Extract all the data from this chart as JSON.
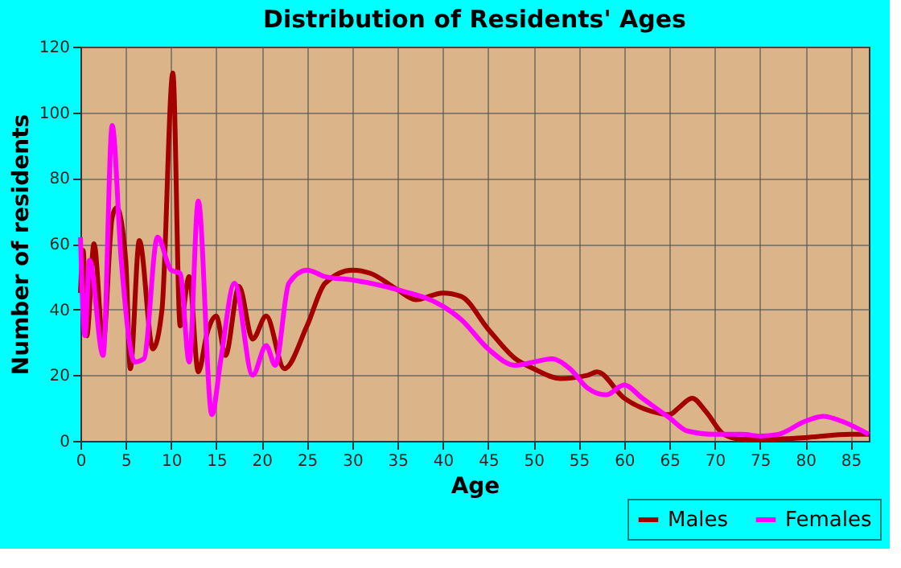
{
  "chart_data": {
    "type": "line",
    "title": "Distribution of Residents' Ages",
    "xlabel": "Age",
    "ylabel": "Number of residents",
    "xlim": [
      0,
      87
    ],
    "ylim": [
      0,
      120
    ],
    "xticks": [
      0,
      5,
      10,
      15,
      20,
      25,
      30,
      35,
      40,
      45,
      50,
      55,
      60,
      65,
      70,
      75,
      80,
      85
    ],
    "yticks": [
      0,
      20,
      40,
      60,
      80,
      100,
      120
    ],
    "grid": true,
    "legend": "bottom right",
    "marker": "none",
    "line_style": "solid",
    "series": [
      {
        "name": "Males",
        "color": "#a50000",
        "x": [
          0,
          0.3,
          0.7,
          1.5,
          2.5,
          3.5,
          4,
          5,
          5.5,
          6.5,
          8,
          9,
          10.2,
          11,
          12,
          13,
          14,
          15,
          16,
          17.5,
          19,
          20.5,
          22.5,
          25,
          27,
          30,
          32,
          35,
          37,
          40,
          42,
          45,
          48,
          50,
          53,
          56,
          57,
          60,
          63,
          65,
          66,
          67.5,
          69,
          71,
          73,
          76,
          80,
          85,
          87
        ],
        "values": [
          45,
          58,
          32,
          60,
          30,
          68,
          71,
          55,
          22,
          61,
          28,
          40,
          112,
          35,
          50,
          21,
          33,
          38,
          26,
          47,
          31,
          38,
          22,
          35,
          48,
          52,
          51,
          46,
          43,
          45,
          44,
          34,
          25,
          22,
          19,
          20,
          21,
          13,
          9,
          8,
          10,
          13,
          9,
          2,
          0.5,
          0.5,
          1,
          2,
          2
        ]
      },
      {
        "name": "Females",
        "color": "#ff00ff",
        "x": [
          0,
          0.5,
          1,
          2.5,
          3.5,
          4.5,
          6,
          7,
          8.5,
          10,
          11,
          12,
          13,
          14.5,
          15.5,
          17,
          19,
          20.5,
          21.5,
          23,
          25,
          27,
          30,
          35,
          40,
          42,
          45,
          48,
          50,
          52,
          54,
          56,
          58,
          60,
          62,
          63,
          65,
          67,
          70,
          73,
          75,
          77,
          80,
          82,
          84,
          87
        ],
        "values": [
          62,
          32,
          55,
          26,
          96,
          55,
          24,
          25,
          62,
          52,
          51,
          24,
          73,
          8,
          25,
          48,
          20,
          29,
          23,
          48,
          52,
          50,
          49,
          46,
          41,
          37,
          28,
          23,
          24,
          25,
          22,
          16,
          14,
          17,
          13,
          11,
          7,
          3,
          2,
          2,
          1.5,
          2,
          6,
          7.5,
          6,
          2
        ]
      }
    ]
  }
}
